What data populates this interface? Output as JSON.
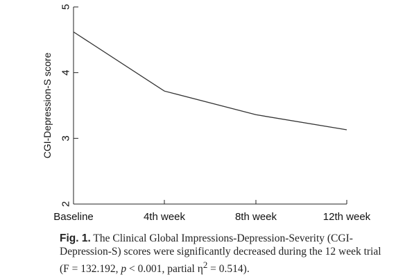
{
  "chart_data": {
    "type": "line",
    "categories": [
      "Baseline",
      "4th week",
      "8th week",
      "12th week"
    ],
    "series": [
      {
        "values": [
          4.62,
          3.72,
          3.36,
          3.13
        ]
      }
    ],
    "ylabel": "CGI-Depression-S score",
    "xlabel": "",
    "ylim": [
      2,
      5
    ],
    "yticks": [
      2,
      3,
      4,
      5
    ],
    "grid": false,
    "line_color": "#333333"
  },
  "caption": {
    "fig_label": "Fig. 1.",
    "line1": "The Clinical Global Impressions-Depression-Severity (CGI-",
    "line2": "Depression-S) scores were significantly decreased during the 12 week",
    "line3_pre": "trial (F = 132.192,",
    "p_symbol": "p",
    "line3_mid": "< 0.001, partial η",
    "sup": "2",
    "line3_post": "= 0.514)."
  }
}
